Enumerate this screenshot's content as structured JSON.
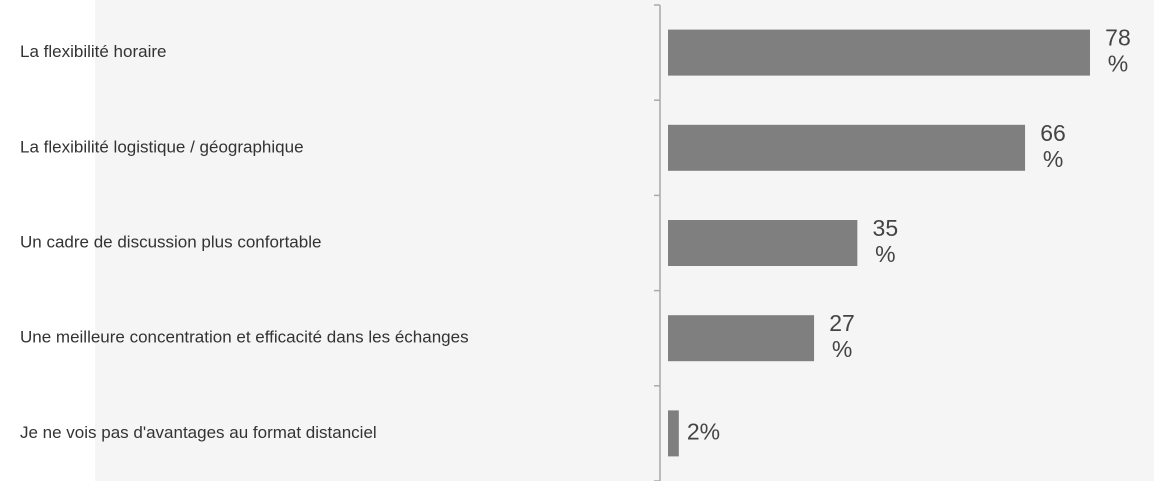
{
  "chart_data": {
    "type": "bar",
    "orientation": "horizontal",
    "categories": [
      "La flexibilité horaire",
      "La flexibilité logistique / géographique",
      "Un cadre de discussion plus confortable",
      "Une meilleure concentration et efficacité dans les échanges",
      "Je ne vois pas d'avantages au format distanciel"
    ],
    "values": [
      78,
      66,
      35,
      27,
      2
    ],
    "value_labels": [
      "78 %",
      "66 %",
      "35 %",
      "27 %",
      "2%"
    ],
    "color": "#7f7f7f",
    "xlim": [
      0,
      100
    ]
  }
}
